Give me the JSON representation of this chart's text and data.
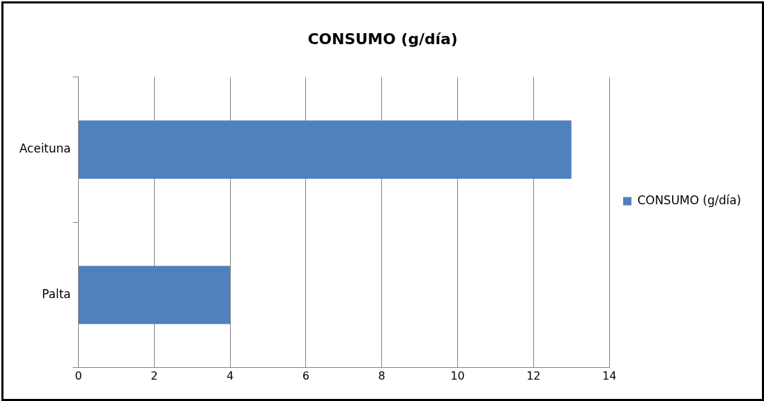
{
  "chart_data": {
    "type": "bar",
    "orientation": "horizontal",
    "title": "CONSUMO (g/día)",
    "categories": [
      "Aceituna",
      "Palta"
    ],
    "series": [
      {
        "name": "CONSUMO (g/día)",
        "color": "#4f81bd",
        "values": [
          13,
          4
        ]
      }
    ],
    "xlim": [
      0,
      14
    ],
    "xticks": [
      0,
      2,
      4,
      6,
      8,
      10,
      12,
      14
    ],
    "grid": "x",
    "legend": "right"
  }
}
